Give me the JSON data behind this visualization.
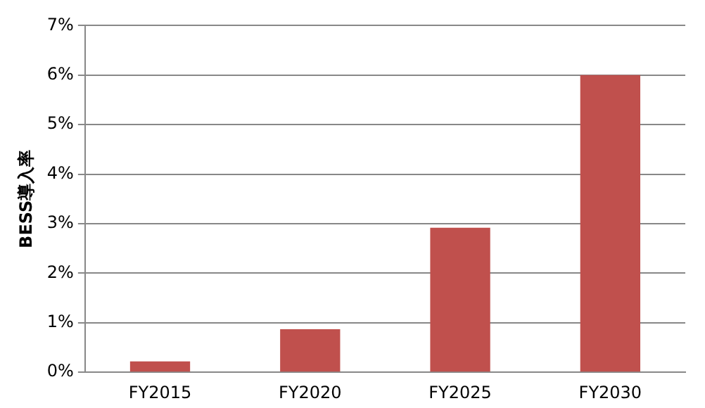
{
  "chart_data": {
    "type": "bar",
    "ylabel": "BESS導入率",
    "categories": [
      "FY2015",
      "FY2020",
      "FY2025",
      "FY2030"
    ],
    "values": [
      0.22,
      0.87,
      2.92,
      6.0
    ],
    "color": "#c0504d",
    "ylim": [
      0,
      7
    ],
    "yticks": [
      {
        "value": 0,
        "label": "0%"
      },
      {
        "value": 1,
        "label": "1%"
      },
      {
        "value": 2,
        "label": "2%"
      },
      {
        "value": 3,
        "label": "3%"
      },
      {
        "value": 4,
        "label": "4%"
      },
      {
        "value": 5,
        "label": "5%"
      },
      {
        "value": 6,
        "label": "6%"
      },
      {
        "value": 7,
        "label": "7%"
      }
    ],
    "grid": "y",
    "legend": false
  }
}
